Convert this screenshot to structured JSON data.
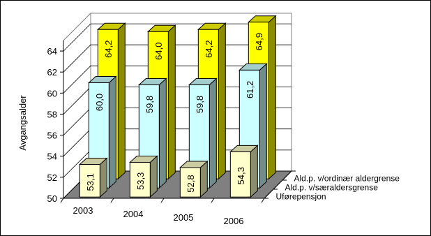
{
  "chart_data": {
    "type": "bar",
    "three_d": true,
    "title": "",
    "xlabel": "",
    "ylabel": "Avgangsalder",
    "ylim": [
      50,
      65
    ],
    "yticks": [
      50,
      52,
      54,
      56,
      58,
      60,
      62,
      64
    ],
    "grid": true,
    "categories": [
      "2003",
      "2004",
      "2005",
      "2006"
    ],
    "series": [
      {
        "name": "Uførepensjon",
        "values": [
          53.1,
          53.3,
          52.8,
          54.3
        ],
        "labels": [
          "53,1",
          "53,3",
          "52,8",
          "54,3"
        ],
        "color": "#FFFFCC"
      },
      {
        "name": "Ald.p. v/særaldersgrense",
        "values": [
          60.0,
          59.8,
          59.8,
          61.2
        ],
        "labels": [
          "60,0",
          "59,8",
          "59,8",
          "61,2"
        ],
        "color": "#CCFFFF"
      },
      {
        "name": "Ald.p. v/ordinær aldergrense",
        "values": [
          64.2,
          64.0,
          64.2,
          64.9
        ],
        "labels": [
          "64,2",
          "64,0",
          "64,2",
          "64,9"
        ],
        "color": "#FFFF00"
      }
    ]
  }
}
